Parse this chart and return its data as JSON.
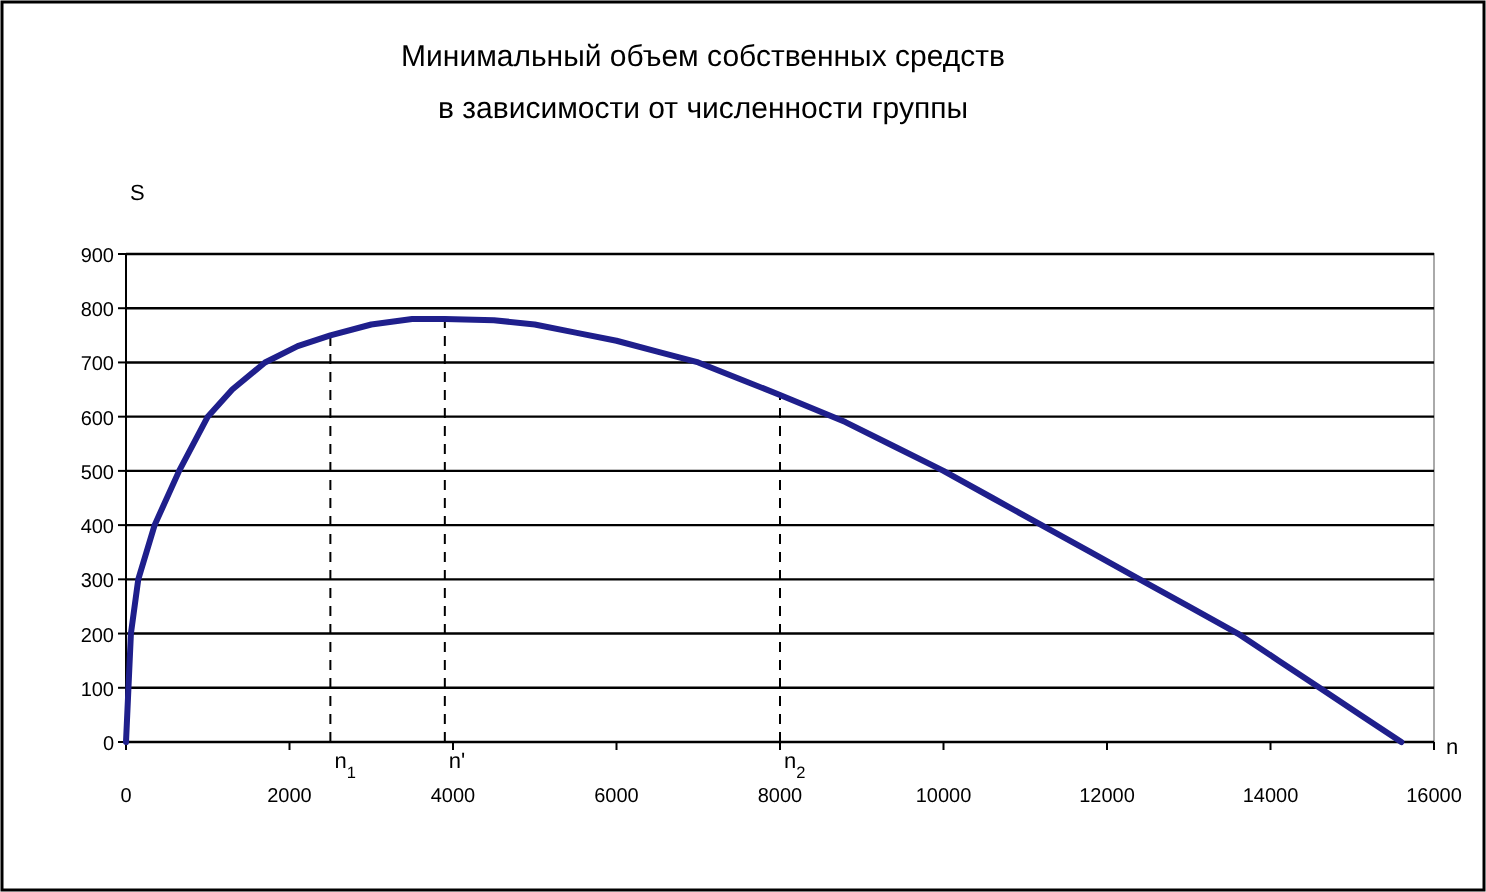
{
  "chart_data": {
    "type": "line",
    "title": "Минимальный объем собственных средств\nв зависимости от численности группы",
    "xlabel": "n",
    "ylabel": "S",
    "x": [
      0,
      30,
      60,
      150,
      350,
      650,
      1000,
      1300,
      1700,
      2100,
      2500,
      3000,
      3500,
      3900,
      4500,
      5000,
      5500,
      6000,
      6500,
      7000,
      7500,
      8000,
      8800,
      9400,
      10000,
      10600,
      11200,
      11800,
      12400,
      13000,
      13600,
      14100,
      14600,
      15100,
      15600
    ],
    "series": [
      {
        "color": "#1f1f8c",
        "values": [
          0,
          100,
          200,
          300,
          400,
          500,
          600,
          650,
          700,
          730,
          750,
          770,
          780,
          780,
          778,
          770,
          755,
          740,
          720,
          700,
          670,
          640,
          590,
          545,
          500,
          450,
          400,
          350,
          300,
          250,
          200,
          150,
          100,
          50,
          0
        ]
      }
    ],
    "xlim": [
      0,
      16000
    ],
    "xticks": [
      0,
      2000,
      4000,
      6000,
      8000,
      10000,
      12000,
      14000,
      16000
    ],
    "ylim": [
      0,
      900
    ],
    "yticks": [
      0,
      100,
      200,
      300,
      400,
      500,
      600,
      700,
      800,
      900
    ],
    "grid": "y",
    "line_style": "solid",
    "ref_lines": [
      {
        "axis": "x",
        "value": 2500,
        "label": "n$_{1}$",
        "line_style": "dashed"
      },
      {
        "axis": "x",
        "value": 3900,
        "label": "n'",
        "line_style": "dashed"
      },
      {
        "axis": "x",
        "value": 8000,
        "label": "n$_{2}$",
        "line_style": "dashed"
      }
    ]
  }
}
